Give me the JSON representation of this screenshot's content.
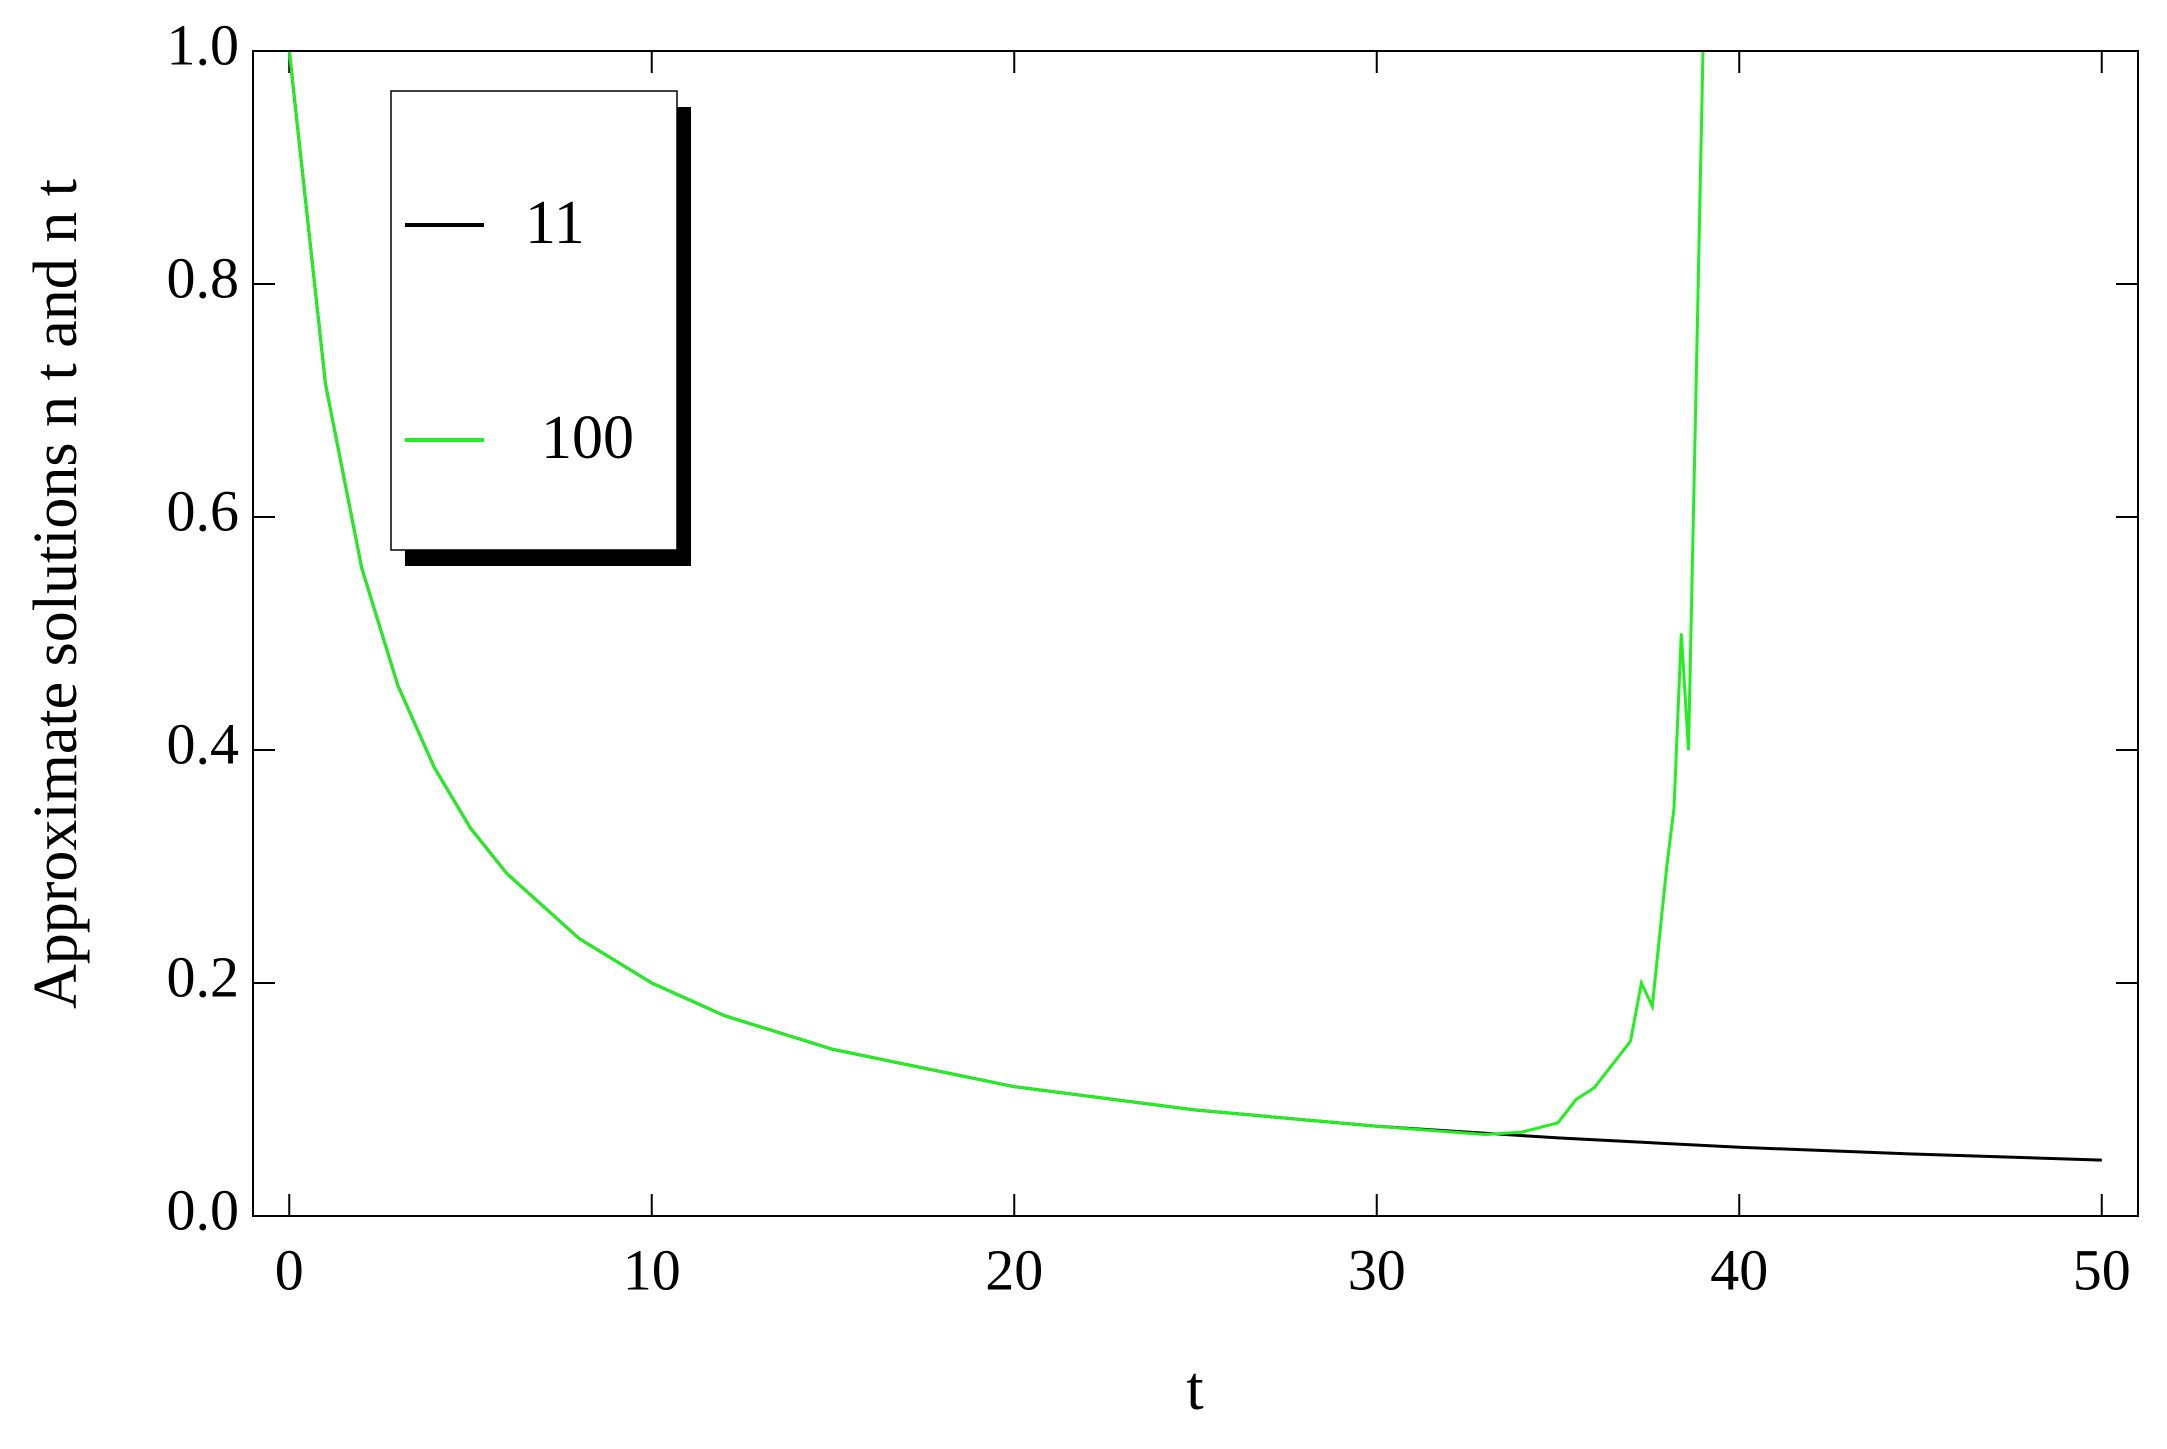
{
  "chart_data": {
    "type": "line",
    "x_label": "t",
    "y_label": "Approximate solutions n t and n t",
    "xlim": [
      -1,
      51
    ],
    "xticks": [
      0,
      10,
      20,
      30,
      40,
      50
    ],
    "ylim": [
      0,
      1
    ],
    "yticks": [
      {
        "value": 0,
        "label": "0.0"
      },
      0.2,
      0.4,
      0.6,
      0.8,
      {
        "value": 1,
        "label": "1.0"
      }
    ],
    "legend": "upper-left",
    "series": [
      {
        "name": "11",
        "color": "#000000",
        "x": [
          0,
          1,
          2,
          3,
          4,
          5,
          6,
          8,
          10,
          12,
          15,
          20,
          25,
          30,
          35,
          40,
          45,
          50
        ],
        "values": [
          1,
          0.714,
          0.556,
          0.455,
          0.385,
          0.333,
          0.294,
          0.238,
          0.2,
          0.172,
          0.143,
          0.111,
          0.091,
          0.077,
          0.067,
          0.059,
          0.053,
          0.048
        ]
      },
      {
        "name": "100",
        "color": "#22ee22",
        "x": [
          0,
          1,
          2,
          3,
          4,
          5,
          6,
          8,
          10,
          12,
          15,
          20,
          25,
          30,
          33,
          34,
          35,
          35.5,
          36,
          36.5,
          37,
          37.3,
          37.6,
          38,
          38.2,
          38.4,
          38.6,
          38.8,
          39
        ],
        "values": [
          1,
          0.714,
          0.556,
          0.455,
          0.385,
          0.333,
          0.294,
          0.238,
          0.2,
          0.172,
          0.143,
          0.111,
          0.091,
          0.077,
          0.07,
          0.072,
          0.08,
          0.1,
          0.11,
          0.13,
          0.15,
          0.2,
          0.18,
          0.3,
          0.35,
          0.5,
          0.4,
          0.7,
          1.0
        ]
      }
    ]
  }
}
